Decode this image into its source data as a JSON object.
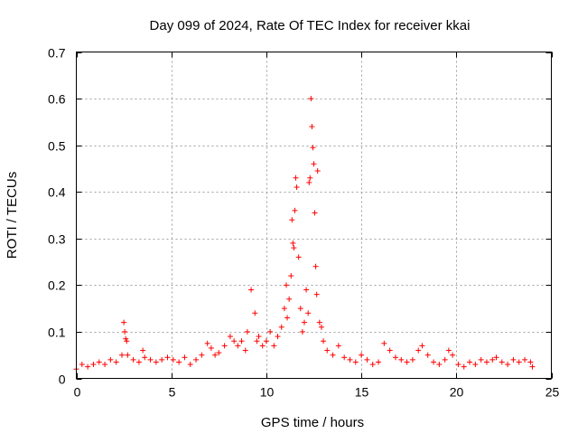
{
  "chart_data": {
    "type": "scatter",
    "title": "Day 099 of 2024, Rate Of TEC Index for receiver kkai",
    "xlabel": "GPS time / hours",
    "ylabel": "ROTI / TECUs",
    "xlim": [
      0,
      25
    ],
    "ylim": [
      0,
      0.7
    ],
    "xticks": [
      "0",
      "5",
      "10",
      "15",
      "20",
      "25"
    ],
    "yticks": [
      "0",
      "0.1",
      "0.2",
      "0.3",
      "0.4",
      "0.5",
      "0.6",
      "0.7"
    ],
    "grid": true,
    "marker": "plus",
    "color": "#ff0000",
    "series": [
      {
        "x": [
          0.0,
          0.3,
          0.6,
          0.9,
          1.2,
          1.5,
          1.8,
          2.1,
          2.4,
          2.5,
          2.55,
          2.6,
          2.65,
          2.7,
          3.0,
          3.3,
          3.5,
          3.6,
          3.9,
          4.2,
          4.5,
          4.8,
          5.1,
          5.4,
          5.7,
          6.0,
          6.3,
          6.6,
          6.9,
          7.1,
          7.3,
          7.5,
          7.8,
          8.1,
          8.3,
          8.5,
          8.7,
          8.9,
          9.0,
          9.2,
          9.4,
          9.5,
          9.6,
          9.8,
          10.0,
          10.2,
          10.4,
          10.6,
          10.8,
          10.95,
          11.05,
          11.1,
          11.2,
          11.3,
          11.35,
          11.4,
          11.45,
          11.5,
          11.55,
          11.6,
          11.7,
          11.8,
          11.9,
          12.0,
          12.1,
          12.2,
          12.25,
          12.3,
          12.35,
          12.4,
          12.45,
          12.5,
          12.55,
          12.6,
          12.65,
          12.7,
          12.8,
          12.9,
          13.0,
          13.2,
          13.5,
          13.8,
          14.1,
          14.4,
          14.7,
          15.0,
          15.3,
          15.6,
          15.9,
          16.2,
          16.5,
          16.8,
          17.1,
          17.4,
          17.7,
          18.0,
          18.2,
          18.5,
          18.8,
          19.1,
          19.4,
          19.6,
          19.8,
          20.1,
          20.4,
          20.7,
          21.0,
          21.3,
          21.6,
          21.9,
          22.1,
          22.4,
          22.7,
          23.0,
          23.3,
          23.6,
          23.9,
          24.0
        ],
        "y": [
          0.02,
          0.03,
          0.025,
          0.03,
          0.035,
          0.03,
          0.04,
          0.035,
          0.05,
          0.12,
          0.1,
          0.085,
          0.08,
          0.05,
          0.04,
          0.035,
          0.06,
          0.045,
          0.04,
          0.035,
          0.04,
          0.045,
          0.04,
          0.035,
          0.045,
          0.03,
          0.04,
          0.05,
          0.075,
          0.065,
          0.05,
          0.055,
          0.07,
          0.09,
          0.08,
          0.07,
          0.08,
          0.06,
          0.1,
          0.19,
          0.14,
          0.08,
          0.09,
          0.07,
          0.08,
          0.1,
          0.07,
          0.09,
          0.11,
          0.15,
          0.2,
          0.13,
          0.17,
          0.22,
          0.34,
          0.29,
          0.28,
          0.36,
          0.43,
          0.41,
          0.26,
          0.15,
          0.1,
          0.12,
          0.19,
          0.14,
          0.42,
          0.43,
          0.6,
          0.54,
          0.495,
          0.46,
          0.355,
          0.24,
          0.18,
          0.445,
          0.12,
          0.11,
          0.08,
          0.06,
          0.05,
          0.07,
          0.045,
          0.04,
          0.035,
          0.05,
          0.04,
          0.03,
          0.035,
          0.075,
          0.06,
          0.045,
          0.04,
          0.035,
          0.04,
          0.06,
          0.07,
          0.05,
          0.035,
          0.03,
          0.04,
          0.06,
          0.05,
          0.03,
          0.025,
          0.035,
          0.03,
          0.04,
          0.035,
          0.04,
          0.045,
          0.035,
          0.03,
          0.04,
          0.035,
          0.04,
          0.035,
          0.025
        ]
      }
    ]
  }
}
